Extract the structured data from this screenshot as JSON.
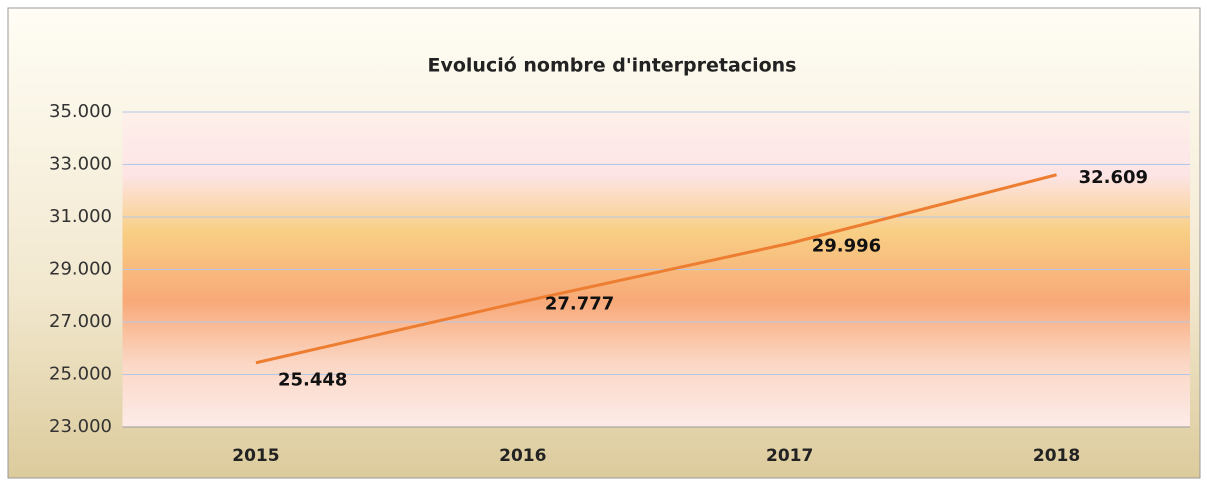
{
  "chart_data": {
    "type": "line",
    "title": "Evolució nombre d'interpretacions",
    "categories": [
      "2015",
      "2016",
      "2017",
      "2018"
    ],
    "series": [
      {
        "color": "#ed7d31",
        "values": [
          25448,
          27777,
          29996,
          32609
        ],
        "value_labels": [
          "25.448",
          "27.777",
          "29.996",
          "32.609"
        ]
      }
    ],
    "ylim": [
      23000,
      35000
    ],
    "yticks": [
      {
        "value": 23000,
        "label": "23.000"
      },
      {
        "value": 25000,
        "label": "25.000"
      },
      {
        "value": 27000,
        "label": "27.000"
      },
      {
        "value": 29000,
        "label": "29.000"
      },
      {
        "value": 31000,
        "label": "31.000"
      },
      {
        "value": 33000,
        "label": "33.000"
      },
      {
        "value": 35000,
        "label": "35.000"
      }
    ],
    "grid": true
  }
}
